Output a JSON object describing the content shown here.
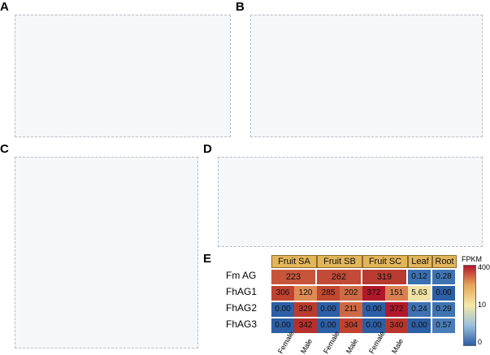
{
  "panels": {
    "a": {
      "label": "A"
    },
    "b": {
      "label": "B"
    },
    "c": {
      "label": "C"
    },
    "d": {
      "label": "D"
    },
    "e": {
      "label": "E"
    }
  },
  "heatmap": {
    "title": "Fm AG",
    "column_groups": [
      "Fruit SA",
      "Fruit SB",
      "Fruit SC",
      "Leaf",
      "Root"
    ],
    "rows": [
      {
        "name": "Fm AG",
        "merged": [
          "223",
          "262",
          "319"
        ],
        "leaf": "0.12",
        "root": "0.28"
      },
      {
        "name": "FhAG1",
        "cells": [
          "306",
          "120",
          "285",
          "202",
          "372",
          "151"
        ],
        "leaf": "5.63",
        "root": "0.00"
      },
      {
        "name": "FhAG2",
        "cells": [
          "0.00",
          "329",
          "0.00",
          "211",
          "0.00",
          "372"
        ],
        "leaf": "0.24",
        "root": "0.29"
      },
      {
        "name": "FhAG3",
        "cells": [
          "0.00",
          "342",
          "0.00",
          "304",
          "0.00",
          "340"
        ],
        "leaf": "0.00",
        "root": "0.57"
      }
    ],
    "sexes": [
      "Female",
      "Male",
      "Female",
      "Male",
      "Female",
      "Male"
    ],
    "legend": {
      "title": "FPKM",
      "ticks": [
        "400",
        "10",
        "0"
      ]
    },
    "colors": {
      "high": "#b2182b",
      "mid": "#f5e9a8",
      "low": "#2c5fa5",
      "group_header": "#e2b55a"
    }
  }
}
